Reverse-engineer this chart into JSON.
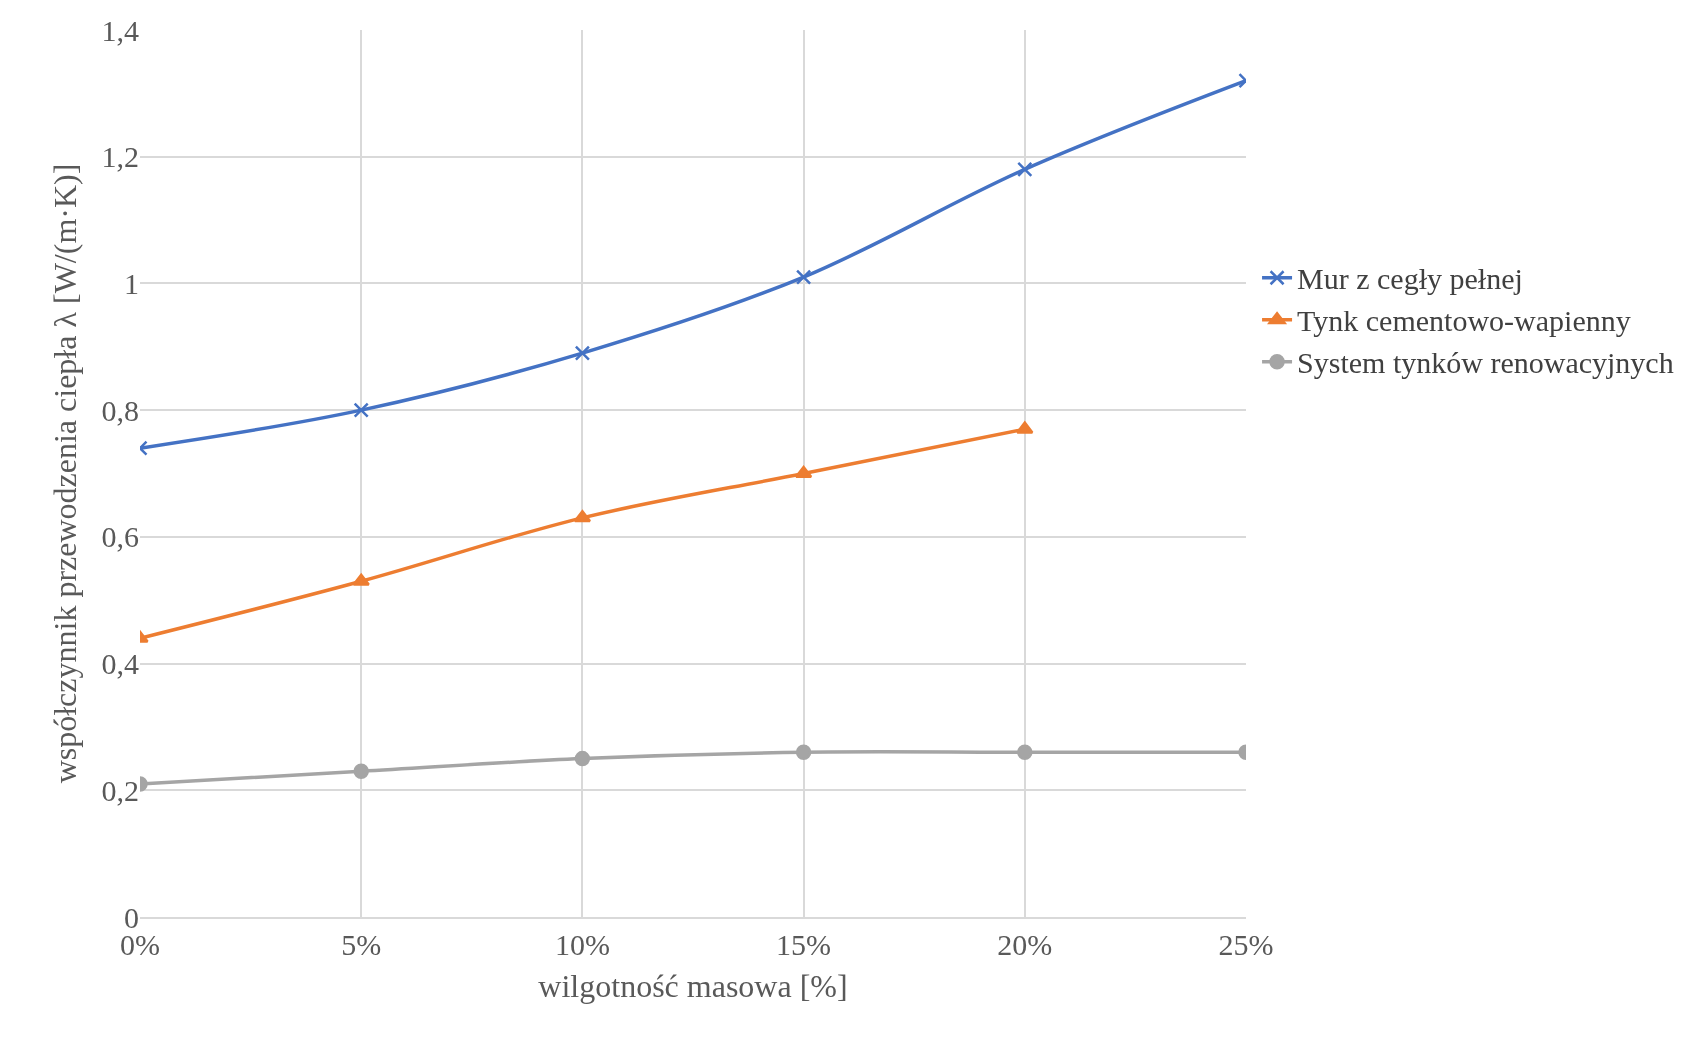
{
  "chart_data": {
    "type": "line",
    "xlabel": "wilgotność masowa [%]",
    "ylabel": "współczynnik przewodzenia ciepła λ [W/(m·K)]",
    "categories": [
      "0%",
      "5%",
      "10%",
      "15%",
      "20%",
      "25%"
    ],
    "series": [
      {
        "name": "Mur z cegły pełnej",
        "color": "#4472c4",
        "marker": "cross",
        "values": [
          0.74,
          0.8,
          0.89,
          1.01,
          1.18,
          1.32
        ]
      },
      {
        "name": "Tynk cementowo-wapienny",
        "color": "#ed7d31",
        "marker": "triangle",
        "values": [
          0.44,
          0.53,
          0.63,
          0.7,
          0.77,
          null
        ]
      },
      {
        "name": "System tynków renowacyjnych",
        "color": "#a5a5a5",
        "marker": "circle",
        "values": [
          0.21,
          0.23,
          0.25,
          0.26,
          0.26,
          0.26
        ]
      }
    ],
    "ylim": [
      0,
      1.4
    ],
    "yticks": [
      0,
      {
        "value": 0.2,
        "label": "0,2"
      },
      {
        "value": 0.4,
        "label": "0,4"
      },
      {
        "value": 0.6,
        "label": "0,6"
      },
      {
        "value": 0.8,
        "label": "0,8"
      },
      1,
      {
        "value": 1.2,
        "label": "1,2"
      },
      {
        "value": 1.4,
        "label": "1,4"
      }
    ],
    "grid": true,
    "legend": "right"
  }
}
